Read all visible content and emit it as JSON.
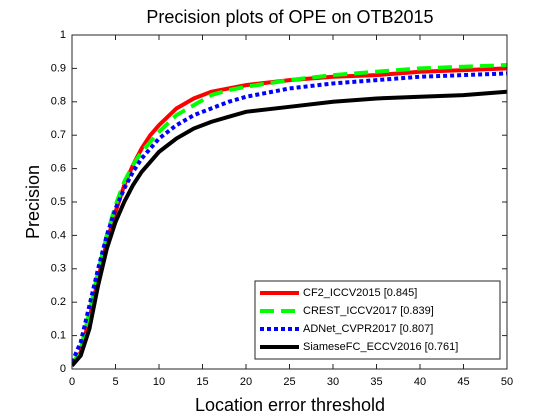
{
  "chart_data": {
    "type": "line",
    "title": "Precision plots of OPE on OTB2015",
    "xlabel": "Location error threshold",
    "ylabel": "Precision",
    "x": [
      0,
      1,
      2,
      3,
      4,
      5,
      6,
      7,
      8,
      9,
      10,
      12,
      14,
      16,
      18,
      20,
      25,
      30,
      35,
      40,
      45,
      50
    ],
    "series": [
      {
        "name": "CF2_ICCV2015 [0.845]",
        "color": "#ff0000",
        "linestyle": "solid",
        "values": [
          0.01,
          0.05,
          0.15,
          0.27,
          0.38,
          0.47,
          0.55,
          0.61,
          0.66,
          0.7,
          0.73,
          0.78,
          0.81,
          0.83,
          0.84,
          0.85,
          0.865,
          0.875,
          0.88,
          0.89,
          0.895,
          0.9
        ]
      },
      {
        "name": "CREST_ICCV2017 [0.839]",
        "color": "#00ff00",
        "linestyle": "dashed",
        "values": [
          0.01,
          0.06,
          0.17,
          0.29,
          0.4,
          0.49,
          0.56,
          0.61,
          0.65,
          0.68,
          0.71,
          0.76,
          0.79,
          0.82,
          0.835,
          0.845,
          0.865,
          0.88,
          0.89,
          0.9,
          0.905,
          0.91
        ]
      },
      {
        "name": "ADNet_CVPR2017 [0.807]",
        "color": "#0000ff",
        "linestyle": "dotted",
        "values": [
          0.02,
          0.08,
          0.19,
          0.3,
          0.4,
          0.48,
          0.54,
          0.59,
          0.63,
          0.66,
          0.69,
          0.73,
          0.76,
          0.78,
          0.8,
          0.815,
          0.84,
          0.855,
          0.865,
          0.875,
          0.88,
          0.885
        ]
      },
      {
        "name": "SiameseFC_ECCV2016 [0.761]",
        "color": "#000000",
        "linestyle": "solid",
        "values": [
          0.01,
          0.04,
          0.12,
          0.25,
          0.36,
          0.44,
          0.5,
          0.55,
          0.59,
          0.62,
          0.65,
          0.69,
          0.72,
          0.74,
          0.755,
          0.77,
          0.785,
          0.8,
          0.81,
          0.815,
          0.82,
          0.83
        ]
      }
    ],
    "xlim": [
      0,
      50
    ],
    "ylim": [
      0,
      1
    ],
    "xticks": [
      0,
      5,
      10,
      15,
      20,
      25,
      30,
      35,
      40,
      45,
      50
    ],
    "yticks": [
      0,
      0.1,
      0.2,
      0.3,
      0.4,
      0.5,
      0.6,
      0.7,
      0.8,
      0.9,
      1
    ],
    "grid": false,
    "legend": "lower right"
  }
}
